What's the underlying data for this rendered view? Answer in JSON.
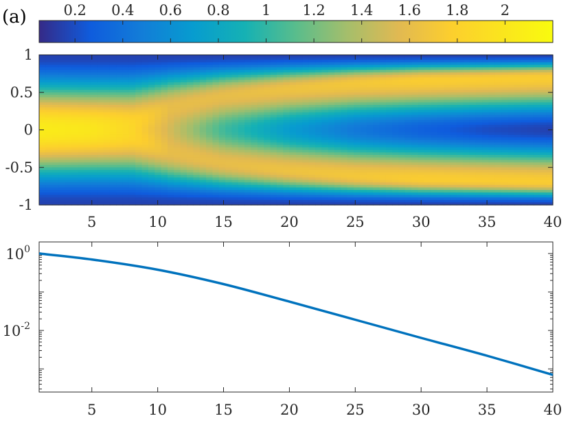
{
  "panel_label": "(a)",
  "chart_data": [
    {
      "type": "heatmap",
      "x_range": [
        1,
        40
      ],
      "y_range": [
        -1,
        1
      ],
      "x_ticks": [
        5,
        10,
        15,
        20,
        25,
        30,
        35,
        40
      ],
      "y_ticks": [
        -1,
        -0.5,
        0,
        0.5,
        1
      ],
      "x_tick_labels": [
        "5",
        "10",
        "15",
        "20",
        "25",
        "30",
        "35",
        "40"
      ],
      "y_tick_labels": [
        "-1",
        "-0.5",
        "0",
        "0.5",
        "1"
      ],
      "colorbar": {
        "location": "top",
        "range": [
          0.05,
          2.2
        ],
        "ticks": [
          0.2,
          0.4,
          0.6,
          0.8,
          1,
          1.2,
          1.4,
          1.6,
          1.8,
          2
        ],
        "tick_labels": [
          "0.2",
          "0.4",
          "0.6",
          "0.8",
          "1",
          "1.2",
          "1.4",
          "1.6",
          "1.8",
          "2"
        ],
        "colormap": "parula"
      },
      "description_of_field": {
        "sampled_x": [
          1,
          5,
          8,
          11,
          15,
          20,
          25,
          30,
          35,
          40
        ],
        "center_value_y0": [
          2.05,
          2.0,
          1.85,
          1.5,
          1.05,
          0.7,
          0.45,
          0.3,
          0.2,
          0.15
        ],
        "lobe_peak_y": [
          0.0,
          0.0,
          0.05,
          0.3,
          0.45,
          0.55,
          0.62,
          0.66,
          0.68,
          0.7
        ],
        "lobe_peak_value": [
          2.05,
          2.0,
          1.85,
          1.6,
          1.6,
          1.65,
          1.7,
          1.75,
          1.75,
          1.75
        ],
        "edge_value": 0.15
      }
    },
    {
      "type": "line",
      "y_scale": "log",
      "x_range": [
        1,
        40
      ],
      "y_range": [
        0.00025,
        2
      ],
      "x_ticks": [
        5,
        10,
        15,
        20,
        25,
        30,
        35,
        40
      ],
      "x_tick_labels": [
        "5",
        "10",
        "15",
        "20",
        "25",
        "30",
        "35",
        "40"
      ],
      "y_major_ticks": [
        0.01,
        1
      ],
      "y_tick_labels": [
        {
          "base": "10",
          "exp": "-2"
        },
        {
          "base": "10",
          "exp": "0"
        }
      ],
      "series": [
        {
          "color": "#0072BD",
          "x": [
            1,
            5,
            10,
            15,
            20,
            25,
            30,
            35,
            40
          ],
          "y": [
            1.0,
            0.7,
            0.38,
            0.16,
            0.056,
            0.019,
            0.0064,
            0.0022,
            0.0007
          ]
        }
      ]
    }
  ]
}
